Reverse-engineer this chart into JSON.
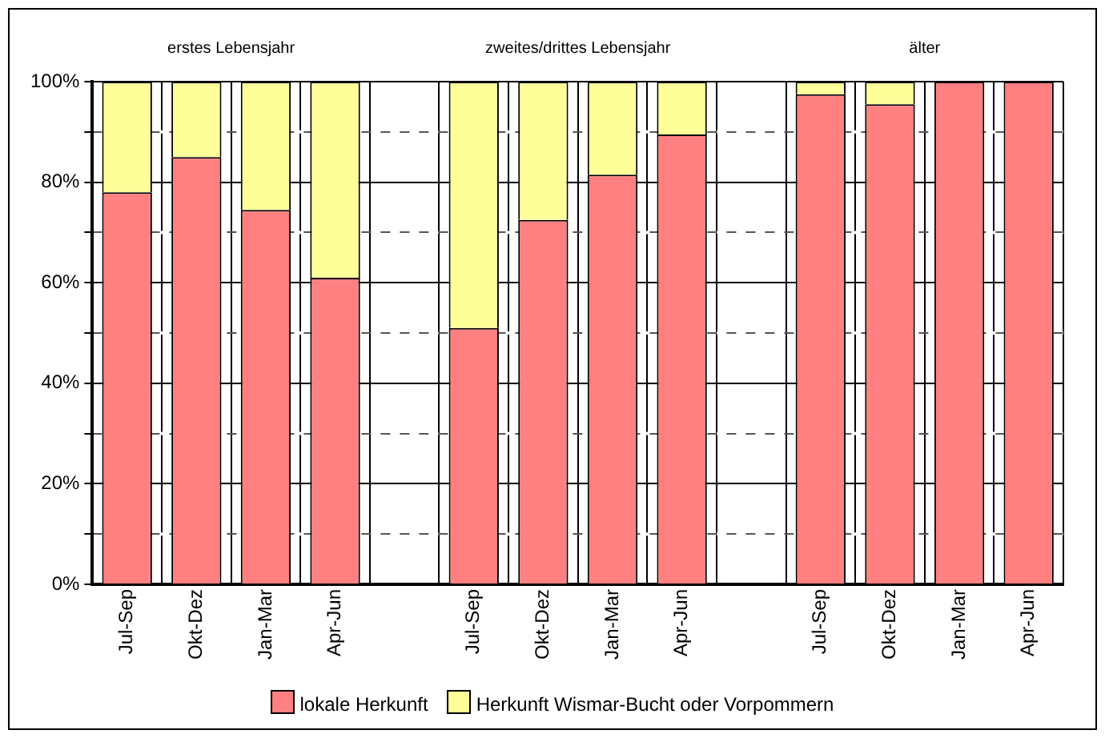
{
  "chart_data": {
    "type": "bar",
    "stacked": true,
    "categories": [
      "Jul-Sep",
      "Okt-Dez",
      "Jan-Mar",
      "Apr-Jun",
      null,
      "Jul-Sep",
      "Okt-Dez",
      "Jan-Mar",
      "Apr-Jun",
      null,
      "Jul-Sep",
      "Okt-Dez",
      "Jan-Mar",
      "Apr-Jun"
    ],
    "series": [
      {
        "name": "lokale Herkunft",
        "color": "#ff8080",
        "values": [
          78,
          85,
          74.5,
          61,
          null,
          51,
          72.5,
          81.5,
          89.5,
          null,
          97.5,
          95.5,
          100,
          100
        ]
      },
      {
        "name": "Herkunft Wismar-Bucht oder Vorpommern",
        "color": "#ffff99",
        "values": [
          22,
          15,
          25.5,
          39,
          null,
          49,
          27.5,
          18.5,
          10.5,
          null,
          2.5,
          4.5,
          0,
          0
        ]
      }
    ],
    "ylim": [
      0,
      100
    ],
    "yticks": [
      {
        "value": 0,
        "label": "0%"
      },
      {
        "value": 10,
        "label": null
      },
      {
        "value": 20,
        "label": "20%"
      },
      {
        "value": 30,
        "label": null
      },
      {
        "value": 40,
        "label": "40%"
      },
      {
        "value": 50,
        "label": null
      },
      {
        "value": 60,
        "label": "60%"
      },
      {
        "value": 70,
        "label": null
      },
      {
        "value": 80,
        "label": "80%"
      },
      {
        "value": 90,
        "label": null
      },
      {
        "value": 100,
        "label": "100%"
      }
    ],
    "grid": true,
    "legend": "bottom",
    "annotations": [
      "erstes Lebensjahr",
      "zweites/drittes Lebensjahr",
      "älter"
    ]
  }
}
